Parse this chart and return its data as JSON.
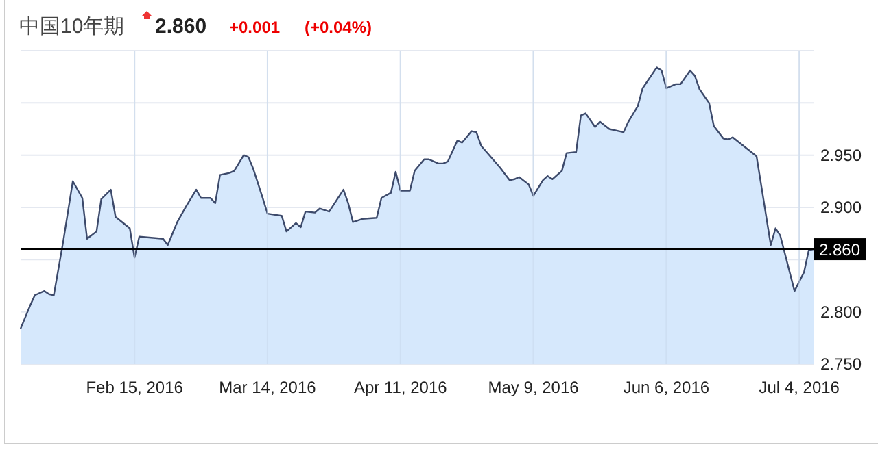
{
  "chart_data": {
    "type": "area",
    "title": "中国10年期",
    "annotations": [
      "2.860",
      "+0.001",
      "(+0.04%)"
    ],
    "x": [
      "2016-01-22",
      "2016-01-24",
      "2016-01-25",
      "2016-01-27",
      "2016-01-28",
      "2016-01-29",
      "2016-01-31",
      "2016-02-02",
      "2016-02-04",
      "2016-02-05",
      "2016-02-07",
      "2016-02-08",
      "2016-02-10",
      "2016-02-11",
      "2016-02-14",
      "2016-02-15",
      "2016-02-16",
      "2016-02-21",
      "2016-02-22",
      "2016-02-24",
      "2016-02-26",
      "2016-02-28",
      "2016-02-29",
      "2016-03-02",
      "2016-03-03",
      "2016-03-04",
      "2016-03-06",
      "2016-03-07",
      "2016-03-09",
      "2016-03-10",
      "2016-03-11",
      "2016-03-13",
      "2016-03-14",
      "2016-03-17",
      "2016-03-18",
      "2016-03-20",
      "2016-03-21",
      "2016-03-22",
      "2016-03-24",
      "2016-03-25",
      "2016-03-27",
      "2016-03-28",
      "2016-03-30",
      "2016-03-31",
      "2016-04-01",
      "2016-04-03",
      "2016-04-06",
      "2016-04-07",
      "2016-04-09",
      "2016-04-10",
      "2016-04-11",
      "2016-04-13",
      "2016-04-14",
      "2016-04-16",
      "2016-04-17",
      "2016-04-19",
      "2016-04-20",
      "2016-04-21",
      "2016-04-23",
      "2016-04-24",
      "2016-04-26",
      "2016-04-27",
      "2016-04-28",
      "2016-05-02",
      "2016-05-04",
      "2016-05-05",
      "2016-05-06",
      "2016-05-08",
      "2016-05-09",
      "2016-05-11",
      "2016-05-12",
      "2016-05-13",
      "2016-05-15",
      "2016-05-16",
      "2016-05-18",
      "2016-05-19",
      "2016-05-20",
      "2016-05-22",
      "2016-05-23",
      "2016-05-25",
      "2016-05-28",
      "2016-05-29",
      "2016-05-31",
      "2016-06-01",
      "2016-06-04",
      "2016-06-05",
      "2016-06-06",
      "2016-06-08",
      "2016-06-09",
      "2016-06-11",
      "2016-06-12",
      "2016-06-13",
      "2016-06-15",
      "2016-06-16",
      "2016-06-18",
      "2016-06-19",
      "2016-06-20",
      "2016-06-25",
      "2016-06-28",
      "2016-06-29",
      "2016-06-30",
      "2016-07-03",
      "2016-07-05",
      "2016-07-06",
      "2016-07-07"
    ],
    "series": [
      {
        "color": "#3d4a6b",
        "values": [
          2.784,
          2.806,
          2.816,
          2.82,
          2.817,
          2.816,
          2.868,
          2.925,
          2.909,
          2.87,
          2.877,
          2.908,
          2.917,
          2.891,
          2.88,
          2.852,
          2.872,
          2.87,
          2.864,
          2.886,
          2.902,
          2.917,
          2.909,
          2.909,
          2.904,
          2.931,
          2.933,
          2.935,
          2.95,
          2.948,
          2.937,
          2.909,
          2.894,
          2.892,
          2.877,
          2.885,
          2.881,
          2.896,
          2.895,
          2.899,
          2.896,
          2.903,
          2.917,
          2.904,
          2.886,
          2.889,
          2.89,
          2.909,
          2.914,
          2.934,
          2.916,
          2.916,
          2.935,
          2.946,
          2.946,
          2.942,
          2.942,
          2.944,
          2.964,
          2.962,
          2.973,
          2.972,
          2.959,
          2.938,
          2.926,
          2.927,
          2.929,
          2.922,
          2.911,
          2.926,
          2.93,
          2.927,
          2.935,
          2.952,
          2.953,
          2.988,
          2.99,
          2.977,
          2.982,
          2.975,
          2.972,
          2.982,
          2.997,
          3.014,
          3.034,
          3.031,
          3.014,
          3.018,
          3.018,
          3.031,
          3.026,
          3.013,
          3.0,
          2.978,
          2.966,
          2.965,
          2.967,
          2.949,
          2.864,
          2.88,
          2.873,
          2.82,
          2.838,
          2.859,
          2.86
        ]
      }
    ],
    "xlim": [
      "2016-01-22",
      "2016-07-07"
    ],
    "xticks": [
      {
        "value": "2016-02-15",
        "label": "Feb 15, 2016"
      },
      {
        "value": "2016-03-14",
        "label": "Mar 14, 2016"
      },
      {
        "value": "2016-04-11",
        "label": "Apr 11, 2016"
      },
      {
        "value": "2016-05-09",
        "label": "May 9, 2016"
      },
      {
        "value": "2016-06-06",
        "label": "Jun 6, 2016"
      },
      {
        "value": "2016-07-04",
        "label": "Jul 4, 2016"
      }
    ],
    "ylim": [
      2.75,
      3.05
    ],
    "yticks": [
      {
        "value": 2.75,
        "label": "2.750"
      },
      {
        "value": 2.8,
        "label": "2.800"
      },
      {
        "value": 2.85,
        "label": null
      },
      {
        "value": 2.9,
        "label": "2.900"
      },
      {
        "value": 2.95,
        "label": "2.950"
      },
      {
        "value": 3.0,
        "label": null
      },
      {
        "value": 3.05,
        "label": null
      }
    ],
    "ref_lines": [
      {
        "axis": "y",
        "value": 2.86,
        "label": "2.860",
        "color": "#000000"
      }
    ],
    "grid": true
  }
}
